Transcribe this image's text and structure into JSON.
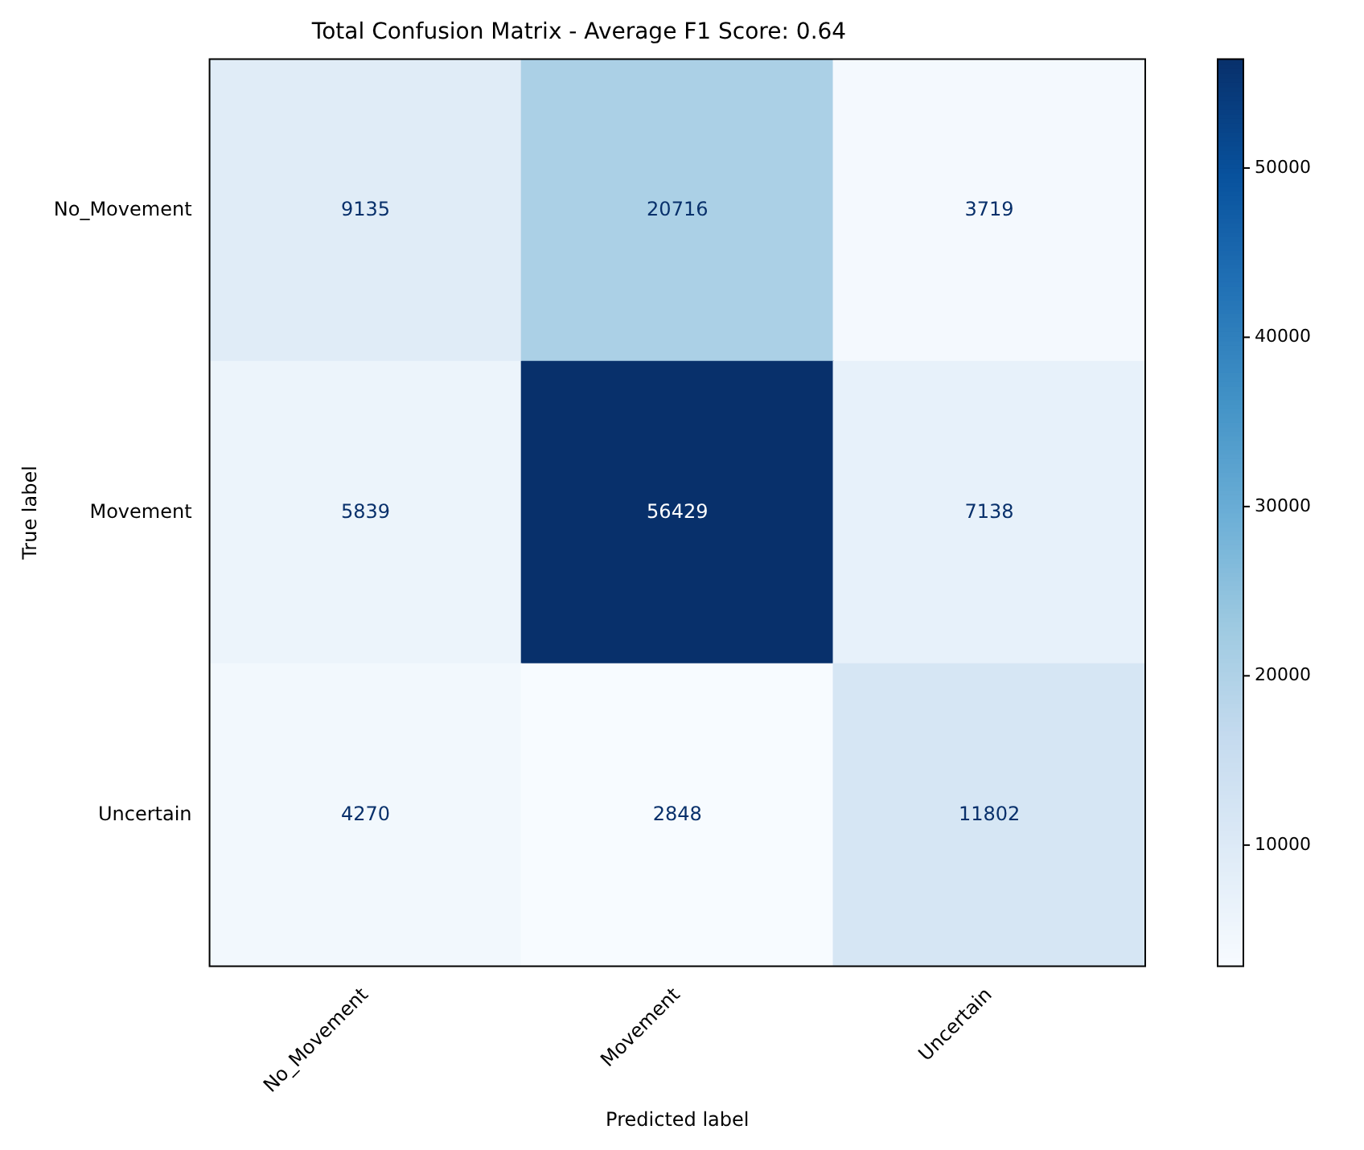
{
  "chart_data": {
    "type": "heatmap",
    "title": "Total Confusion Matrix - Average F1 Score: 0.64",
    "xlabel": "Predicted label",
    "ylabel": "True label",
    "categories": [
      "No_Movement",
      "Movement",
      "Uncertain"
    ],
    "y_categories": [
      "No_Movement",
      "Movement",
      "Uncertain"
    ],
    "cells": [
      [
        9135,
        20716,
        3719
      ],
      [
        5839,
        56429,
        7138
      ],
      [
        4270,
        2848,
        11802
      ]
    ],
    "clim": [
      2848,
      56429
    ],
    "cticks": [
      10000,
      20000,
      30000,
      40000,
      50000
    ],
    "data_labels": true
  }
}
